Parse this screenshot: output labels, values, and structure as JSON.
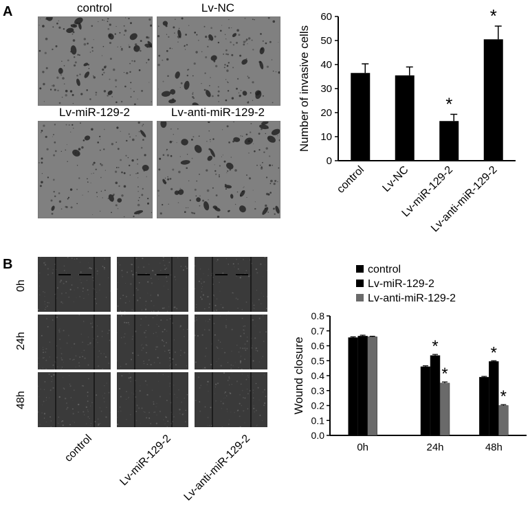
{
  "panel_a": {
    "letter": "A",
    "micrograph_labels": [
      "control",
      "Lv-NC",
      "Lv-miR-129-2",
      "Lv-anti-miR-129-2"
    ]
  },
  "panel_b": {
    "letter": "B",
    "row_labels": [
      "0h",
      "24h",
      "48h"
    ],
    "column_labels": [
      "control",
      "Lv-miR-129-2",
      "Lv-anti-miR-129-2"
    ]
  },
  "colors": {
    "bar_black": "#000000",
    "bar_gray": "#6a6a6a",
    "micro_bg": "#808080",
    "wound_bg": "#3a3a3a"
  },
  "chart_data": [
    {
      "type": "bar",
      "categories": [
        "control",
        "Lv-NC",
        "Lv-miR-129-2",
        "Lv-anti-miR-129-2"
      ],
      "values": [
        36.5,
        35.5,
        16.5,
        50.5
      ],
      "errors": [
        3.8,
        3.5,
        2.8,
        5.5
      ],
      "significance": [
        "",
        "",
        "*",
        "*"
      ],
      "ylabel": "Number of invasive cells",
      "ylim": [
        0,
        60
      ],
      "yticks": [
        "0",
        "10",
        "20",
        "30",
        "40",
        "50",
        "60"
      ],
      "grid": false
    },
    {
      "type": "bar",
      "categories": [
        "0h",
        "24h",
        "48h"
      ],
      "series": [
        {
          "name": "control",
          "values": [
            0.655,
            0.46,
            0.39
          ],
          "errors": [
            0.005,
            0.006,
            0.005
          ],
          "color": "#000000",
          "significance": [
            "",
            "",
            ""
          ]
        },
        {
          "name": "Lv-miR-129-2",
          "values": [
            0.665,
            0.535,
            0.495
          ],
          "errors": [
            0.006,
            0.007,
            0.005
          ],
          "color": "#000000",
          "significance": [
            "",
            "*",
            "*"
          ]
        },
        {
          "name": "Lv-anti-miR-129-2",
          "values": [
            0.66,
            0.35,
            0.2
          ],
          "errors": [
            0.004,
            0.008,
            0.006
          ],
          "color": "#6a6a6a",
          "significance": [
            "",
            "*",
            "*"
          ]
        }
      ],
      "ylabel": "Wound closure",
      "ylim": [
        0,
        0.8
      ],
      "yticks": [
        "0.0",
        "0.1",
        "0.2",
        "0.3",
        "0.4",
        "0.5",
        "0.6",
        "0.7",
        "0.8"
      ],
      "legend": "top-left",
      "grid": false
    }
  ]
}
